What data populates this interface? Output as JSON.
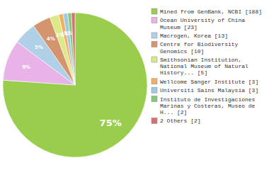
{
  "chart_data": {
    "type": "pie",
    "categories": [
      "Mined from GenBank, NCBI [188]",
      "Ocean University of China\nMuseum [23]",
      "Macrogen, Korea [13]",
      "Centre for Biodiversity\nGenomics [10]",
      "Smithsonian Institution,\nNational Museum of Natural\nHistory... [5]",
      "Wellcome Sanger Institute [3]",
      "Universiti Sains Malaysia [3]",
      "Instituto de Investigaciones\nMarinas y Costeras, Museo de\nH... [2]",
      "2 Others [2]"
    ],
    "values": [
      75,
      9,
      5,
      4,
      2,
      1,
      1,
      0.8,
      0.8
    ],
    "value_labels": [
      "75%",
      "9%",
      "5%",
      "4%",
      "2%",
      "1%",
      "1%",
      null,
      null
    ],
    "colors": [
      "#9acd4e",
      "#e8b4e8",
      "#b0d0e8",
      "#d4956e",
      "#dde888",
      "#f0b060",
      "#a0c8e0",
      "#88c878",
      "#d87070"
    ],
    "data_labels": true,
    "legend": "right"
  }
}
